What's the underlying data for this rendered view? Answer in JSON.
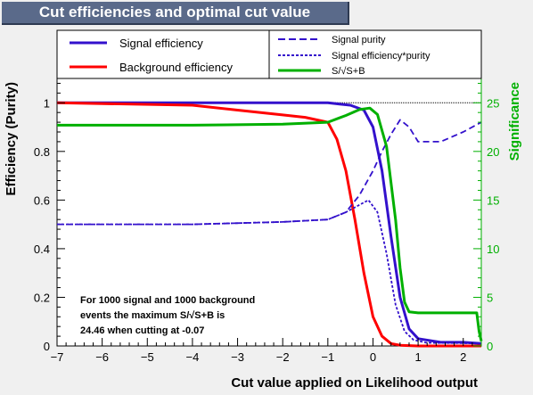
{
  "header": {
    "title": "Cut efficiencies and optimal cut value"
  },
  "legend": {
    "items": [
      {
        "label": "Signal efficiency",
        "color": "#3311cc",
        "style": "solid"
      },
      {
        "label": "Background efficiency",
        "color": "#ff0000",
        "style": "solid"
      },
      {
        "label": "Signal purity",
        "color": "#3311cc",
        "style": "dashed"
      },
      {
        "label": "Signal efficiency*purity",
        "color": "#3311cc",
        "style": "dotted"
      },
      {
        "label": "S/√S+B",
        "color": "#00b000",
        "style": "solid"
      }
    ]
  },
  "annotation": {
    "line1": "For 1000 signal and 1000 background",
    "line2": "events the maximum S/√S+B is",
    "line3": "24.46 when cutting at -0.07"
  },
  "chart_data": {
    "type": "line",
    "xlabel": "Cut value applied on Likelihood output",
    "ylabel": "Efficiency (Purity)",
    "y2label": "Significance",
    "xlim": [
      -7,
      2.4
    ],
    "ylim": [
      0,
      1.1
    ],
    "y2lim": [
      0,
      27.5
    ],
    "xticks": [
      "−7",
      "−6",
      "−5",
      "−4",
      "−3",
      "−2",
      "−1",
      "0",
      "1",
      "2"
    ],
    "yticks": [
      "0",
      "0.2",
      "0.4",
      "0.6",
      "0.8",
      "1"
    ],
    "y2ticks": [
      "0",
      "5",
      "10",
      "15",
      "20",
      "25"
    ],
    "reference_line_y": 1.0,
    "series": [
      {
        "name": "Signal efficiency",
        "color": "#3311cc",
        "style": "solid",
        "axis": "left",
        "x": [
          -7,
          -3,
          -1,
          -0.5,
          -0.2,
          0,
          0.2,
          0.4,
          0.6,
          0.8,
          1.0,
          1.5,
          2.0,
          2.4
        ],
        "y": [
          1.0,
          1.0,
          1.0,
          0.99,
          0.97,
          0.9,
          0.72,
          0.45,
          0.2,
          0.07,
          0.03,
          0.015,
          0.015,
          0.01
        ]
      },
      {
        "name": "Background efficiency",
        "color": "#ff0000",
        "style": "solid",
        "axis": "left",
        "x": [
          -7,
          -4,
          -3,
          -2,
          -1.5,
          -1.0,
          -0.8,
          -0.6,
          -0.4,
          -0.2,
          0,
          0.2,
          0.4,
          0.6,
          1.0,
          2.4
        ],
        "y": [
          1.0,
          0.99,
          0.97,
          0.95,
          0.94,
          0.92,
          0.85,
          0.72,
          0.52,
          0.3,
          0.12,
          0.04,
          0.01,
          0.003,
          0.0,
          0.0
        ]
      },
      {
        "name": "Signal purity",
        "color": "#3311cc",
        "style": "dashed",
        "axis": "left",
        "x": [
          -7,
          -4,
          -2,
          -1,
          -0.6,
          -0.3,
          0,
          0.2,
          0.4,
          0.6,
          0.8,
          1.0,
          1.5,
          2.0,
          2.4
        ],
        "y": [
          0.5,
          0.5,
          0.51,
          0.52,
          0.55,
          0.62,
          0.72,
          0.8,
          0.87,
          0.93,
          0.9,
          0.84,
          0.84,
          0.88,
          0.92
        ]
      },
      {
        "name": "Signal efficiency*purity",
        "color": "#3311cc",
        "style": "dotted",
        "axis": "left",
        "x": [
          -7,
          -4,
          -2,
          -1,
          -0.6,
          -0.3,
          -0.1,
          0.1,
          0.3,
          0.5,
          0.7,
          0.9,
          1.2,
          1.8,
          2.4
        ],
        "y": [
          0.5,
          0.5,
          0.51,
          0.52,
          0.55,
          0.58,
          0.6,
          0.55,
          0.38,
          0.17,
          0.06,
          0.025,
          0.013,
          0.012,
          0.01
        ]
      },
      {
        "name": "S/√S+B",
        "color": "#00b000",
        "style": "solid",
        "axis": "right",
        "x": [
          -7,
          -4,
          -2,
          -1,
          -0.6,
          -0.3,
          -0.07,
          0.1,
          0.3,
          0.5,
          0.6,
          0.7,
          0.8,
          1.0,
          2.3,
          2.35,
          2.4
        ],
        "y": [
          22.7,
          22.7,
          22.8,
          23.0,
          23.7,
          24.3,
          24.46,
          23.8,
          20.5,
          13.0,
          8.0,
          4.5,
          3.5,
          3.4,
          3.4,
          1.5,
          0.5
        ]
      }
    ]
  }
}
